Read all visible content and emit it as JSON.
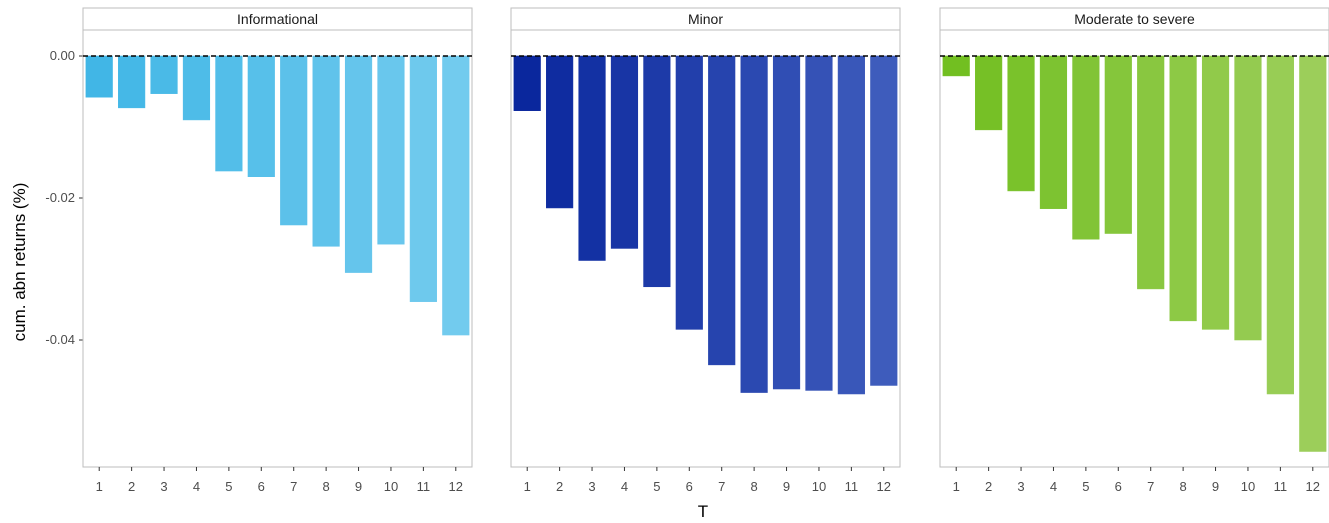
{
  "chart_data": {
    "type": "bar",
    "xlabel": "T",
    "ylabel": "cum. abn returns (%)",
    "ylim": [
      -0.057,
      0.002
    ],
    "yticks": [
      0.0,
      -0.02,
      -0.04
    ],
    "ytick_labels": [
      "0.00",
      "-0.02",
      "-0.04"
    ],
    "categories": [
      "1",
      "2",
      "3",
      "4",
      "5",
      "6",
      "7",
      "8",
      "9",
      "10",
      "11",
      "12"
    ],
    "reference_line": {
      "y": 0,
      "style": "dashed"
    },
    "grid": false,
    "legend": "none",
    "facets": [
      {
        "name": "Informational",
        "color_start": "#41b6e6",
        "color_end": "#72cbee",
        "values": [
          -0.0058,
          -0.0073,
          -0.0053,
          -0.009,
          -0.0162,
          -0.017,
          -0.0238,
          -0.0268,
          -0.0305,
          -0.0265,
          -0.0346,
          -0.0393
        ]
      },
      {
        "name": "Minor",
        "color_start": "#0a279d",
        "color_end": "#3e5cbc",
        "values": [
          -0.0077,
          -0.0214,
          -0.0288,
          -0.0271,
          -0.0325,
          -0.0385,
          -0.0435,
          -0.0474,
          -0.0469,
          -0.0471,
          -0.0476,
          -0.0464
        ]
      },
      {
        "name": "Moderate to severe",
        "color_start": "#72bf21",
        "color_end": "#9cce5a",
        "values": [
          -0.0028,
          -0.0104,
          -0.019,
          -0.0215,
          -0.0258,
          -0.025,
          -0.0328,
          -0.0373,
          -0.0385,
          -0.04,
          -0.0476,
          -0.0557
        ]
      }
    ]
  }
}
